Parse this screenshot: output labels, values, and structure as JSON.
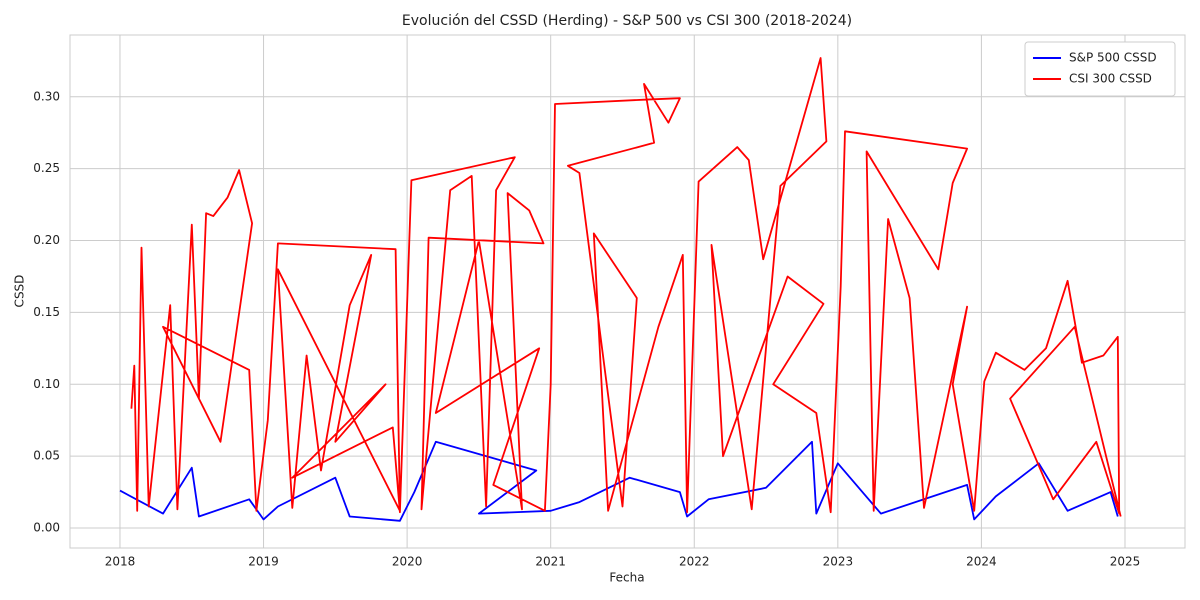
{
  "chart_data": {
    "type": "line",
    "title": "Evolución del CSSD (Herding) - S&P 500 vs CSI 300 (2018-2024)",
    "xlabel": "Fecha",
    "ylabel": "CSSD",
    "xlim": [
      2017.652,
      2025.418
    ],
    "xticks": [
      2018,
      2019,
      2020,
      2021,
      2022,
      2023,
      2024,
      2025
    ],
    "ylim": [
      -0.0139,
      0.343
    ],
    "yticks": [
      {
        "value": 0,
        "label": "0.00"
      },
      0.05,
      {
        "value": 0.1,
        "label": "0.10"
      },
      0.15,
      {
        "value": 0.2,
        "label": "0.20"
      },
      0.25,
      {
        "value": 0.3,
        "label": "0.30"
      }
    ],
    "grid": true,
    "legend": "upper right",
    "series": [
      {
        "name": "S&P 500 CSSD",
        "color": "#0000ff",
        "x": [
          2018.0,
          2018.3,
          2018.5,
          2018.55,
          2018.9,
          2019.0,
          2019.1,
          2019.5,
          2019.6,
          2019.95,
          2020.05,
          2020.2,
          2020.9,
          2020.5,
          2021.0,
          2021.2,
          2021.55,
          2021.9,
          2021.95,
          2022.1,
          2022.5,
          2022.82,
          2022.85,
          2023.0,
          2023.3,
          2023.9,
          2023.95,
          2024.1,
          2024.4,
          2024.6,
          2024.9,
          2024.95
        ],
        "values": [
          0.026,
          0.01,
          0.042,
          0.008,
          0.02,
          0.006,
          0.015,
          0.035,
          0.008,
          0.005,
          0.025,
          0.06,
          0.04,
          0.01,
          0.012,
          0.018,
          0.035,
          0.025,
          0.008,
          0.02,
          0.028,
          0.06,
          0.01,
          0.045,
          0.01,
          0.03,
          0.006,
          0.022,
          0.045,
          0.012,
          0.025,
          0.008
        ]
      },
      {
        "name": "CSI 300 CSSD",
        "color": "#ff0000",
        "x": [
          2018.08,
          2018.1,
          2018.12,
          2018.15,
          2018.2,
          2018.35,
          2018.4,
          2018.5,
          2018.55,
          2018.6,
          2018.65,
          2018.75,
          2018.83,
          2018.92,
          2018.7,
          2018.3,
          2018.9,
          2018.95,
          2019.03,
          2019.1,
          2019.92,
          2019.95,
          2019.1,
          2019.2,
          2019.3,
          2019.4,
          2019.6,
          2019.75,
          2019.5,
          2019.85,
          2019.2,
          2019.9,
          2019.95,
          2020.03,
          2020.75,
          2020.62,
          2020.55,
          2020.45,
          2020.3,
          2020.1,
          2020.15,
          2020.95,
          2020.85,
          2020.7,
          2020.8,
          2020.5,
          2020.2,
          2020.92,
          2020.6,
          2020.96,
          2021.0,
          2021.03,
          2021.65,
          2021.9,
          2021.82,
          2021.65,
          2021.72,
          2021.12,
          2021.2,
          2021.5,
          2021.6,
          2021.3,
          2021.4,
          2021.75,
          2021.92,
          2021.95,
          2022.03,
          2022.3,
          2022.38,
          2022.48,
          2022.88,
          2022.92,
          2022.6,
          2022.4,
          2022.12,
          2022.2,
          2022.65,
          2022.9,
          2022.55,
          2022.85,
          2022.95,
          2023.02,
          2023.05,
          2023.9,
          2023.8,
          2023.7,
          2023.2,
          2023.25,
          2023.35,
          2023.5,
          2023.6,
          2023.9,
          2023.8,
          2023.95,
          2024.02,
          2024.1,
          2024.3,
          2024.45,
          2024.6,
          2024.7,
          2024.85,
          2024.95,
          2024.96,
          2024.8,
          2024.5,
          2024.2,
          2024.65,
          2024.97
        ],
        "values": [
          0.083,
          0.113,
          0.012,
          0.195,
          0.015,
          0.155,
          0.013,
          0.211,
          0.09,
          0.219,
          0.217,
          0.23,
          0.249,
          0.212,
          0.06,
          0.14,
          0.11,
          0.012,
          0.075,
          0.198,
          0.194,
          0.012,
          0.18,
          0.014,
          0.12,
          0.04,
          0.155,
          0.19,
          0.06,
          0.1,
          0.035,
          0.07,
          0.011,
          0.242,
          0.258,
          0.235,
          0.015,
          0.245,
          0.235,
          0.013,
          0.202,
          0.198,
          0.221,
          0.233,
          0.013,
          0.2,
          0.08,
          0.125,
          0.03,
          0.012,
          0.1,
          0.295,
          0.298,
          0.299,
          0.282,
          0.309,
          0.268,
          0.252,
          0.247,
          0.015,
          0.16,
          0.205,
          0.012,
          0.14,
          0.19,
          0.011,
          0.241,
          0.265,
          0.256,
          0.187,
          0.327,
          0.269,
          0.238,
          0.013,
          0.197,
          0.05,
          0.175,
          0.156,
          0.1,
          0.08,
          0.011,
          0.168,
          0.276,
          0.264,
          0.24,
          0.18,
          0.262,
          0.012,
          0.215,
          0.16,
          0.014,
          0.154,
          0.1,
          0.012,
          0.102,
          0.122,
          0.11,
          0.125,
          0.172,
          0.115,
          0.12,
          0.133,
          0.01,
          0.06,
          0.02,
          0.09,
          0.14,
          0.008
        ]
      }
    ]
  }
}
